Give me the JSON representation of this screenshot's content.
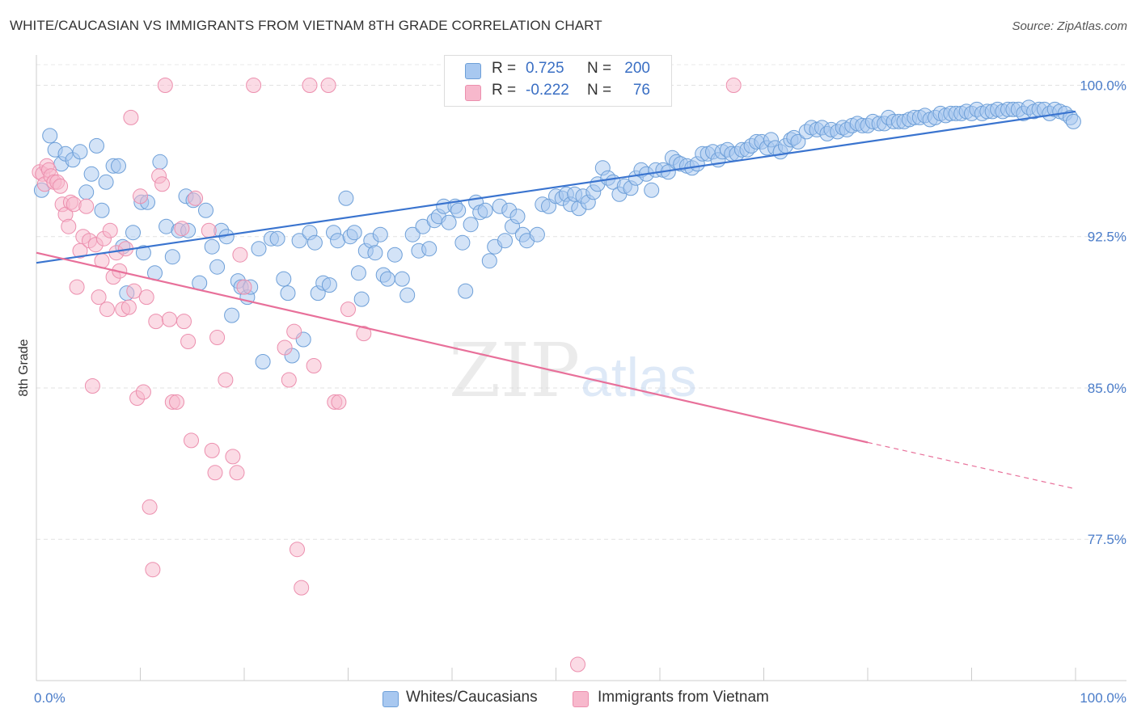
{
  "title": "WHITE/CAUCASIAN VS IMMIGRANTS FROM VIETNAM 8TH GRADE CORRELATION CHART",
  "source": "Source: ZipAtlas.com",
  "watermark": {
    "zip": "ZIP",
    "atlas": "atlas"
  },
  "legend_top": {
    "rows": [
      {
        "r_label": "R =",
        "r_value": "0.725",
        "n_label": "N =",
        "n_value": "200",
        "color": "#a8c8f0"
      },
      {
        "r_label": "R =",
        "r_value": "-0.222",
        "n_label": "N =",
        "n_value": "76",
        "color": "#f7b8cc"
      }
    ]
  },
  "legend_bottom": [
    {
      "label": "Whites/Caucasians",
      "color": "#a8c8f0"
    },
    {
      "label": "Immigrants from Vietnam",
      "color": "#f7b8cc"
    }
  ],
  "chart_data": {
    "type": "scatter",
    "ylabel": "8th Grade",
    "xlim": [
      0,
      100
    ],
    "ylim": [
      70.5,
      101.5
    ],
    "y_ticks": [
      {
        "value": 100.0,
        "label": "100.0%"
      },
      {
        "value": 92.5,
        "label": "92.5%"
      },
      {
        "value": 85.0,
        "label": "85.0%"
      },
      {
        "value": 77.5,
        "label": "77.5%"
      }
    ],
    "x_tick_labels": [
      {
        "value": 0,
        "label": "0.0%"
      },
      {
        "value": 100,
        "label": "100.0%"
      }
    ],
    "x_minor_ticks": [
      0,
      10,
      20,
      30,
      40,
      50,
      60,
      70,
      80,
      90,
      100
    ],
    "grid": true,
    "series": [
      {
        "name": "Whites/Caucasians",
        "color": "#a8c8f0",
        "stroke": "#6d9fd8",
        "line_color": "#3a74cf",
        "trend": {
          "x0": 0,
          "y0": 91.2,
          "x1": 100,
          "y1": 98.7
        },
        "points": [
          [
            0.5,
            94.8
          ],
          [
            1.3,
            97.5
          ],
          [
            1.8,
            96.8
          ],
          [
            2.4,
            96.1
          ],
          [
            2.8,
            96.6
          ],
          [
            3.5,
            96.3
          ],
          [
            4.2,
            96.7
          ],
          [
            4.8,
            94.7
          ],
          [
            5.3,
            95.6
          ],
          [
            5.8,
            97.0
          ],
          [
            6.3,
            93.8
          ],
          [
            6.7,
            95.2
          ],
          [
            7.4,
            96.0
          ],
          [
            7.9,
            96.0
          ],
          [
            8.3,
            92.0
          ],
          [
            8.7,
            89.7
          ],
          [
            9.3,
            92.7
          ],
          [
            10.1,
            94.2
          ],
          [
            10.3,
            91.7
          ],
          [
            10.7,
            94.2
          ],
          [
            11.4,
            90.7
          ],
          [
            11.9,
            96.2
          ],
          [
            12.5,
            93.0
          ],
          [
            13.1,
            91.5
          ],
          [
            13.7,
            92.8
          ],
          [
            14.4,
            94.5
          ],
          [
            14.6,
            92.8
          ],
          [
            15.1,
            94.3
          ],
          [
            15.7,
            90.2
          ],
          [
            16.3,
            93.8
          ],
          [
            16.9,
            92.0
          ],
          [
            17.4,
            91.0
          ],
          [
            17.8,
            92.8
          ],
          [
            18.3,
            92.5
          ],
          [
            18.8,
            88.6
          ],
          [
            19.4,
            90.3
          ],
          [
            19.7,
            90.0
          ],
          [
            20.3,
            89.5
          ],
          [
            20.6,
            90.0
          ],
          [
            21.4,
            91.9
          ],
          [
            21.8,
            86.3
          ],
          [
            22.6,
            92.4
          ],
          [
            23.2,
            92.4
          ],
          [
            23.8,
            90.4
          ],
          [
            24.2,
            89.7
          ],
          [
            24.6,
            86.6
          ],
          [
            25.3,
            92.3
          ],
          [
            25.7,
            87.4
          ],
          [
            26.3,
            92.7
          ],
          [
            26.8,
            92.2
          ],
          [
            27.1,
            89.7
          ],
          [
            27.6,
            90.2
          ],
          [
            28.2,
            90.1
          ],
          [
            28.6,
            92.7
          ],
          [
            29.0,
            92.3
          ],
          [
            29.8,
            94.4
          ],
          [
            30.2,
            92.5
          ],
          [
            30.6,
            92.7
          ],
          [
            31.0,
            90.7
          ],
          [
            31.3,
            89.4
          ],
          [
            31.7,
            91.8
          ],
          [
            32.2,
            92.3
          ],
          [
            32.6,
            91.7
          ],
          [
            33.1,
            92.6
          ],
          [
            33.4,
            90.6
          ],
          [
            33.8,
            90.4
          ],
          [
            34.5,
            91.6
          ],
          [
            35.2,
            90.4
          ],
          [
            35.7,
            89.6
          ],
          [
            36.2,
            92.6
          ],
          [
            36.8,
            91.8
          ],
          [
            37.2,
            93.0
          ],
          [
            37.8,
            91.9
          ],
          [
            38.3,
            93.3
          ],
          [
            38.7,
            93.5
          ],
          [
            39.2,
            94.0
          ],
          [
            39.7,
            93.2
          ],
          [
            40.3,
            94.0
          ],
          [
            40.6,
            93.8
          ],
          [
            41.0,
            92.2
          ],
          [
            41.3,
            89.8
          ],
          [
            41.8,
            93.1
          ],
          [
            42.3,
            94.2
          ],
          [
            42.7,
            93.7
          ],
          [
            43.2,
            93.8
          ],
          [
            43.6,
            91.3
          ],
          [
            44.1,
            92.0
          ],
          [
            44.6,
            94.0
          ],
          [
            45.1,
            92.3
          ],
          [
            45.5,
            93.8
          ],
          [
            45.8,
            93.0
          ],
          [
            46.3,
            93.5
          ],
          [
            46.8,
            92.6
          ],
          [
            47.2,
            92.3
          ],
          [
            48.2,
            92.6
          ],
          [
            48.7,
            94.1
          ],
          [
            49.3,
            94.0
          ],
          [
            50.0,
            94.5
          ],
          [
            50.6,
            94.4
          ],
          [
            51.0,
            94.6
          ],
          [
            51.4,
            94.1
          ],
          [
            51.8,
            94.6
          ],
          [
            52.2,
            93.9
          ],
          [
            52.6,
            94.5
          ],
          [
            53.1,
            94.2
          ],
          [
            53.6,
            94.7
          ],
          [
            54.0,
            95.1
          ],
          [
            54.5,
            95.9
          ],
          [
            55.0,
            95.4
          ],
          [
            55.5,
            95.2
          ],
          [
            56.1,
            94.6
          ],
          [
            56.6,
            95.0
          ],
          [
            57.2,
            94.9
          ],
          [
            57.7,
            95.4
          ],
          [
            58.2,
            95.8
          ],
          [
            58.7,
            95.6
          ],
          [
            59.2,
            94.8
          ],
          [
            59.6,
            95.8
          ],
          [
            60.3,
            95.8
          ],
          [
            60.8,
            95.7
          ],
          [
            61.2,
            96.4
          ],
          [
            61.6,
            96.2
          ],
          [
            62.0,
            96.1
          ],
          [
            62.6,
            96.0
          ],
          [
            63.1,
            95.9
          ],
          [
            63.6,
            96.1
          ],
          [
            64.1,
            96.6
          ],
          [
            64.6,
            96.6
          ],
          [
            65.1,
            96.7
          ],
          [
            65.6,
            96.3
          ],
          [
            66.0,
            96.7
          ],
          [
            66.5,
            96.8
          ],
          [
            66.9,
            96.6
          ],
          [
            67.4,
            96.6
          ],
          [
            67.9,
            96.8
          ],
          [
            68.4,
            96.8
          ],
          [
            68.8,
            97.0
          ],
          [
            69.3,
            97.2
          ],
          [
            69.8,
            97.2
          ],
          [
            70.3,
            96.9
          ],
          [
            70.7,
            97.3
          ],
          [
            71.1,
            96.9
          ],
          [
            71.6,
            96.7
          ],
          [
            72.1,
            97.0
          ],
          [
            72.6,
            97.3
          ],
          [
            72.9,
            97.4
          ],
          [
            73.3,
            97.2
          ],
          [
            74.1,
            97.7
          ],
          [
            74.6,
            97.9
          ],
          [
            75.1,
            97.8
          ],
          [
            75.6,
            97.9
          ],
          [
            76.1,
            97.6
          ],
          [
            76.5,
            97.8
          ],
          [
            77.1,
            97.7
          ],
          [
            77.6,
            97.9
          ],
          [
            78.0,
            97.8
          ],
          [
            78.5,
            98.0
          ],
          [
            79.0,
            98.1
          ],
          [
            79.5,
            98.0
          ],
          [
            80.0,
            98.0
          ],
          [
            80.5,
            98.2
          ],
          [
            81.1,
            98.1
          ],
          [
            81.6,
            98.1
          ],
          [
            82.0,
            98.4
          ],
          [
            82.5,
            98.2
          ],
          [
            83.0,
            98.2
          ],
          [
            83.5,
            98.2
          ],
          [
            84.0,
            98.3
          ],
          [
            84.5,
            98.4
          ],
          [
            85.0,
            98.4
          ],
          [
            85.5,
            98.5
          ],
          [
            86.0,
            98.3
          ],
          [
            86.5,
            98.4
          ],
          [
            87.0,
            98.6
          ],
          [
            87.5,
            98.5
          ],
          [
            88.0,
            98.6
          ],
          [
            88.5,
            98.6
          ],
          [
            89.0,
            98.6
          ],
          [
            89.5,
            98.7
          ],
          [
            90.0,
            98.6
          ],
          [
            90.5,
            98.8
          ],
          [
            91.0,
            98.6
          ],
          [
            91.5,
            98.7
          ],
          [
            92.0,
            98.7
          ],
          [
            92.5,
            98.8
          ],
          [
            93.0,
            98.7
          ],
          [
            93.5,
            98.8
          ],
          [
            94.0,
            98.8
          ],
          [
            94.5,
            98.8
          ],
          [
            95.0,
            98.6
          ],
          [
            95.5,
            98.9
          ],
          [
            96.0,
            98.7
          ],
          [
            96.5,
            98.8
          ],
          [
            97.0,
            98.8
          ],
          [
            97.5,
            98.6
          ],
          [
            98.0,
            98.8
          ],
          [
            98.5,
            98.7
          ],
          [
            99.0,
            98.6
          ],
          [
            99.5,
            98.4
          ],
          [
            99.8,
            98.2
          ]
        ]
      },
      {
        "name": "Immigrants from Vietnam",
        "color": "#f7b8cc",
        "stroke": "#ec8fae",
        "line_color": "#e8709a",
        "trend": {
          "x0": 0,
          "y0": 91.7,
          "x1": 80,
          "y1": 82.3
        },
        "trend_dashed": {
          "x0": 80,
          "y0": 82.3,
          "x1": 100,
          "y1": 80.0
        },
        "points": [
          [
            0.3,
            95.7
          ],
          [
            0.6,
            95.6
          ],
          [
            0.8,
            95.1
          ],
          [
            1.0,
            96.0
          ],
          [
            1.2,
            95.8
          ],
          [
            1.4,
            95.5
          ],
          [
            1.7,
            95.2
          ],
          [
            2.0,
            95.2
          ],
          [
            2.3,
            95.0
          ],
          [
            2.5,
            94.1
          ],
          [
            2.8,
            93.6
          ],
          [
            3.1,
            93.0
          ],
          [
            3.3,
            94.2
          ],
          [
            3.6,
            94.1
          ],
          [
            3.9,
            90.0
          ],
          [
            4.2,
            91.8
          ],
          [
            4.5,
            92.5
          ],
          [
            4.8,
            94.0
          ],
          [
            5.1,
            92.3
          ],
          [
            5.4,
            85.1
          ],
          [
            5.7,
            92.1
          ],
          [
            6.0,
            89.5
          ],
          [
            6.3,
            91.3
          ],
          [
            6.5,
            92.4
          ],
          [
            6.8,
            88.9
          ],
          [
            7.1,
            92.8
          ],
          [
            7.4,
            90.5
          ],
          [
            7.7,
            91.7
          ],
          [
            8.0,
            90.8
          ],
          [
            8.3,
            88.9
          ],
          [
            8.6,
            91.9
          ],
          [
            8.9,
            89.0
          ],
          [
            9.1,
            98.4
          ],
          [
            9.4,
            89.8
          ],
          [
            9.7,
            84.5
          ],
          [
            10.0,
            94.5
          ],
          [
            10.3,
            84.8
          ],
          [
            10.6,
            89.5
          ],
          [
            10.9,
            79.1
          ],
          [
            11.2,
            76.0
          ],
          [
            11.5,
            88.3
          ],
          [
            11.8,
            95.5
          ],
          [
            12.1,
            95.1
          ],
          [
            12.4,
            100.0
          ],
          [
            12.8,
            88.4
          ],
          [
            13.1,
            84.3
          ],
          [
            13.5,
            84.3
          ],
          [
            14.0,
            92.9
          ],
          [
            14.2,
            88.3
          ],
          [
            14.6,
            87.3
          ],
          [
            14.9,
            82.4
          ],
          [
            15.3,
            94.4
          ],
          [
            16.6,
            92.8
          ],
          [
            16.9,
            81.9
          ],
          [
            17.2,
            80.8
          ],
          [
            17.4,
            87.5
          ],
          [
            18.2,
            85.4
          ],
          [
            18.9,
            81.6
          ],
          [
            19.3,
            80.8
          ],
          [
            19.6,
            91.6
          ],
          [
            20.0,
            90.0
          ],
          [
            20.9,
            100.0
          ],
          [
            23.9,
            87.0
          ],
          [
            24.3,
            85.4
          ],
          [
            24.8,
            87.8
          ],
          [
            25.1,
            77.0
          ],
          [
            25.5,
            75.1
          ],
          [
            26.3,
            100.0
          ],
          [
            26.7,
            86.1
          ],
          [
            28.1,
            100.0
          ],
          [
            28.7,
            84.3
          ],
          [
            29.1,
            84.3
          ],
          [
            30.0,
            88.9
          ],
          [
            31.5,
            87.7
          ],
          [
            52.1,
            71.3
          ],
          [
            67.1,
            100.0
          ]
        ]
      }
    ]
  }
}
